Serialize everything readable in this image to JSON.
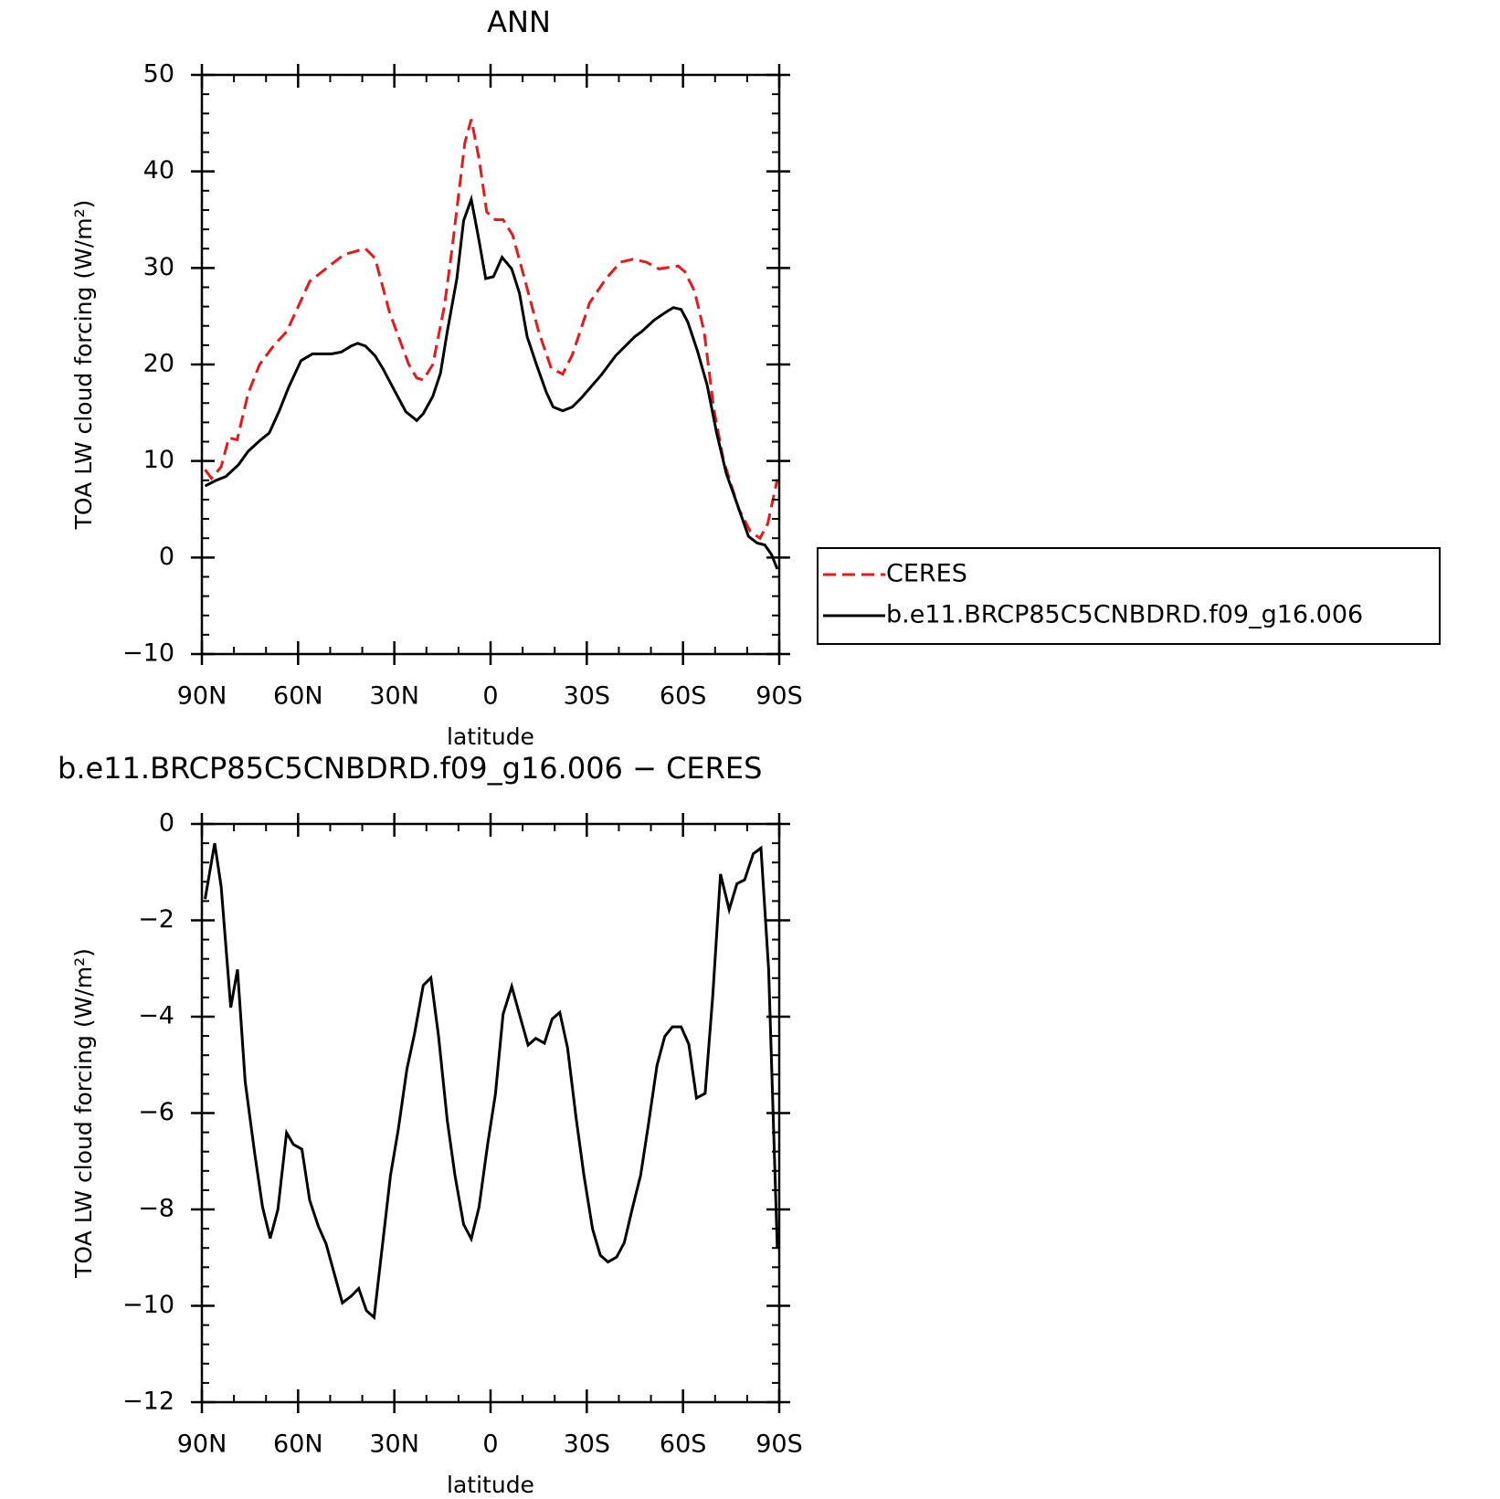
{
  "chart_data": [
    {
      "type": "line",
      "title": "ANN",
      "xlabel": "latitude",
      "ylabel": "TOA LW cloud forcing (W/m²)",
      "xlim": [
        90,
        -90
      ],
      "ylim": [
        -10,
        50
      ],
      "xticks": [
        {
          "value": 90,
          "label": "90N"
        },
        {
          "value": 60,
          "label": "60N"
        },
        {
          "value": 30,
          "label": "30N"
        },
        0,
        {
          "value": -30,
          "label": "30S"
        },
        {
          "value": -60,
          "label": "60S"
        },
        {
          "value": -90,
          "label": "90S"
        }
      ],
      "yticks": [
        {
          "value": -10,
          "label": "−10"
        },
        0,
        10,
        20,
        30,
        40,
        50
      ],
      "legend": "right",
      "series": [
        {
          "name": "CERES",
          "color": "#e41a1c",
          "line_style": "dashed",
          "x": [
            89,
            87,
            84,
            81.6,
            79,
            75.6,
            72,
            67.5,
            63.6,
            59.4,
            56.4,
            49.5,
            45.6,
            39,
            36,
            31.5,
            25.5,
            23,
            21,
            18,
            14.4,
            12,
            8,
            6,
            3.6,
            1.2,
            -1.5,
            -3.9,
            -6.9,
            -10.5,
            -15,
            -18.9,
            -22.5,
            -25.5,
            -30.9,
            -36,
            -40.5,
            -44.4,
            -48.6,
            -52.5,
            -58.5,
            -60.6,
            -63.6,
            -66.6,
            -69.6,
            -72.6,
            -77.4,
            -81,
            -84,
            -86.4,
            -89.4
          ],
          "values": [
            9.1,
            8.2,
            9.4,
            12.4,
            12.2,
            17,
            20,
            22,
            23.4,
            26.4,
            28.6,
            30.4,
            31.4,
            32,
            31,
            25.4,
            20,
            18.6,
            18.4,
            20,
            26,
            32,
            43,
            45.4,
            41.3,
            35.8,
            35,
            35,
            33.4,
            29,
            23.4,
            19.6,
            19,
            21,
            26.4,
            28.9,
            30.6,
            30.9,
            30.6,
            29.9,
            30.2,
            29.6,
            27.6,
            23.4,
            15.4,
            10.1,
            5,
            2.7,
            2,
            3.5,
            8.1
          ]
        },
        {
          "name": "b.e11.BRCP85C5CNBDRD.f09_g16.006",
          "color": "#000000",
          "line_style": "solid",
          "x": [
            89,
            85.5,
            82.5,
            78.6,
            75.6,
            72,
            69,
            66,
            63,
            59.1,
            55.5,
            49.5,
            46.5,
            43.5,
            41.4,
            39,
            36,
            33.6,
            30.6,
            26.4,
            23,
            21,
            18,
            15.6,
            13.5,
            10.5,
            8.4,
            6,
            3.9,
            1.5,
            -0.9,
            -3.6,
            -6.6,
            -9,
            -11.4,
            -14.4,
            -17.4,
            -19.5,
            -22.5,
            -25.5,
            -28.5,
            -34.5,
            -39,
            -45,
            -47.1,
            -51,
            -54.6,
            -57,
            -59.4,
            -61.5,
            -64.5,
            -67.5,
            -70.5,
            -73.5,
            -76.5,
            -80.4,
            -83.1,
            -85.5,
            -87.6,
            -89.4
          ],
          "values": [
            7.4,
            8,
            8.4,
            9.6,
            11,
            12.1,
            12.9,
            15.1,
            17.6,
            20.4,
            21.1,
            21.1,
            21.3,
            21.9,
            22.2,
            21.9,
            20.9,
            19.6,
            17.7,
            15.1,
            14.2,
            14.9,
            16.7,
            19.1,
            23.4,
            28.9,
            34.9,
            37.1,
            33.4,
            28.9,
            29.1,
            31.1,
            29.9,
            27.4,
            22.9,
            19.9,
            17.1,
            15.6,
            15.2,
            15.6,
            16.6,
            18.9,
            20.9,
            22.9,
            23.4,
            24.6,
            25.4,
            25.9,
            25.7,
            24.4,
            21.4,
            17.9,
            12.9,
            8.7,
            5.9,
            2.2,
            1.5,
            1.3,
            0.3,
            -1.2
          ]
        }
      ]
    },
    {
      "type": "line",
      "title": "b.e11.BRCP85C5CNBDRD.f09_g16.006 − CERES",
      "xlabel": "latitude",
      "ylabel": "TOA LW cloud forcing (W/m²)",
      "xlim": [
        90,
        -90
      ],
      "ylim": [
        -12,
        0
      ],
      "xticks": [
        {
          "value": 90,
          "label": "90N"
        },
        {
          "value": 60,
          "label": "60N"
        },
        {
          "value": 30,
          "label": "30N"
        },
        0,
        {
          "value": -30,
          "label": "30S"
        },
        {
          "value": -60,
          "label": "60S"
        },
        {
          "value": -90,
          "label": "90S"
        }
      ],
      "yticks": [
        {
          "value": -12,
          "label": "−12"
        },
        {
          "value": -10,
          "label": "−10"
        },
        {
          "value": -8,
          "label": "−8"
        },
        {
          "value": -6,
          "label": "−6"
        },
        {
          "value": -4,
          "label": "−4"
        },
        {
          "value": -2,
          "label": "−2"
        },
        0
      ],
      "series": [
        {
          "color": "#000000",
          "line_style": "solid",
          "x": [
            89,
            86,
            84,
            81,
            78.9,
            76.5,
            73.5,
            71.1,
            68.7,
            66.3,
            63.6,
            61.5,
            58.8,
            56.4,
            53.7,
            51.3,
            48.9,
            46.2,
            43.5,
            41.1,
            38.7,
            36.3,
            33.9,
            31.2,
            28.8,
            26.1,
            23.7,
            21,
            18.6,
            16.2,
            13.5,
            11.1,
            8.4,
            6,
            3.6,
            0.9,
            -1.5,
            -3.9,
            -6.6,
            -9,
            -11.7,
            -14.1,
            -16.8,
            -19.2,
            -21.6,
            -24,
            -26.7,
            -29.1,
            -31.8,
            -34.2,
            -36.6,
            -39.3,
            -41.7,
            -44.1,
            -46.8,
            -49.2,
            -51.9,
            -54.3,
            -56.7,
            -59.4,
            -61.8,
            -64.2,
            -66.9,
            -69.3,
            -71.7,
            -74.4,
            -76.8,
            -79.2,
            -81.9,
            -84.3,
            -86.7,
            -89.4
          ],
          "values": [
            -1.56,
            -0.4,
            -1.3,
            -3.81,
            -3.02,
            -5.35,
            -6.85,
            -7.95,
            -8.6,
            -8.0,
            -6.41,
            -6.65,
            -6.75,
            -7.81,
            -8.35,
            -8.71,
            -9.29,
            -9.94,
            -9.8,
            -9.64,
            -10.1,
            -10.24,
            -8.85,
            -7.29,
            -6.35,
            -5.09,
            -4.35,
            -3.35,
            -3.19,
            -4.41,
            -6.15,
            -7.29,
            -8.31,
            -8.61,
            -7.95,
            -6.65,
            -5.61,
            -3.95,
            -3.37,
            -3.95,
            -4.59,
            -4.45,
            -4.55,
            -4.05,
            -3.91,
            -4.65,
            -6.11,
            -7.29,
            -8.41,
            -8.95,
            -9.09,
            -8.99,
            -8.69,
            -8.01,
            -7.29,
            -6.25,
            -5.01,
            -4.41,
            -4.21,
            -4.21,
            -4.57,
            -5.69,
            -5.59,
            -3.55,
            -1.04,
            -1.78,
            -1.24,
            -1.16,
            -0.62,
            -0.5,
            -3.02,
            -8.81
          ]
        }
      ]
    }
  ]
}
